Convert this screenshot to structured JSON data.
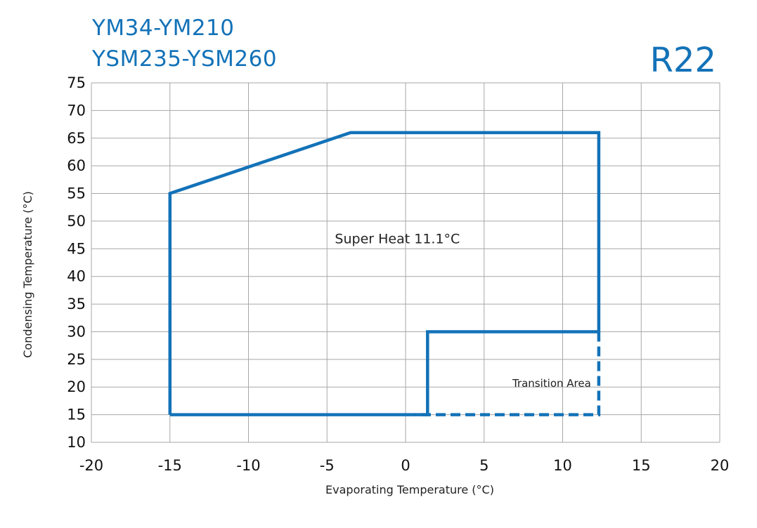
{
  "header": {
    "title_line1": "YM34-YM210",
    "title_line2": "YSM235-YSM260",
    "refrigerant": "R22"
  },
  "colors": {
    "envelope": "#1372b8",
    "grid": "#a7a7a7",
    "text": "#111111"
  },
  "chart_data": {
    "type": "line",
    "title": "YM34-YM210 YSM235-YSM260",
    "xlabel": "Evaporating Temperature (°C)",
    "ylabel": "Condensing Temperature (°C)",
    "xlim": [
      -20,
      20
    ],
    "ylim": [
      10,
      75
    ],
    "xticks": [
      -20,
      -15,
      -10,
      -5,
      0,
      5,
      10,
      15,
      20
    ],
    "yticks": [
      10,
      15,
      20,
      25,
      30,
      35,
      40,
      45,
      50,
      55,
      60,
      65,
      70,
      75
    ],
    "grid": true,
    "series": [
      {
        "style": "solid",
        "x": [
          -15,
          -15,
          -3.5,
          12.3,
          12.3,
          1.4,
          1.4,
          -15
        ],
        "y": [
          15,
          55,
          66,
          66,
          30,
          30,
          15,
          15
        ]
      },
      {
        "style": "dashed",
        "x": [
          12.3,
          12.3,
          0.6
        ],
        "y": [
          30,
          15,
          15
        ]
      }
    ],
    "annotations": [
      {
        "text": "Super Heat 11.1°C",
        "x": -4.5,
        "y": 46
      },
      {
        "text": "Transition Area",
        "x": 6.8,
        "y": 20
      }
    ]
  }
}
